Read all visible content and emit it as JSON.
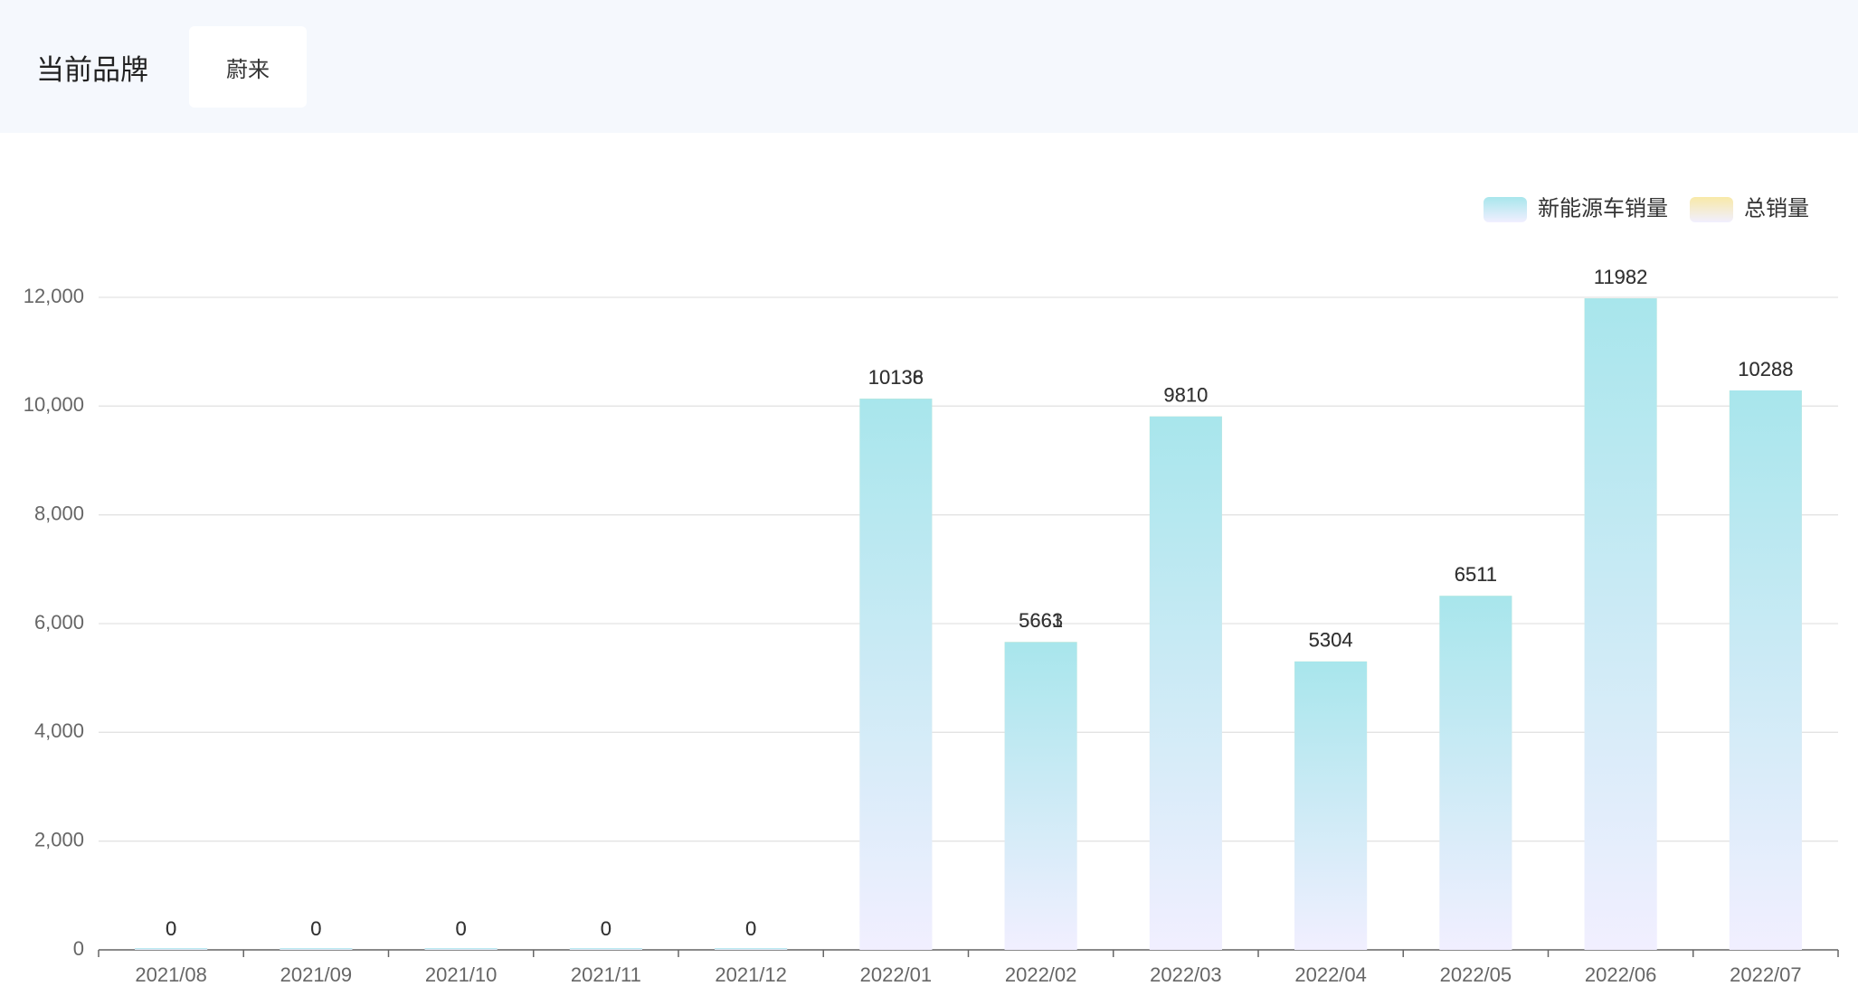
{
  "header": {
    "label": "当前品牌",
    "brand": "蔚来"
  },
  "chart_data": {
    "type": "bar",
    "categories": [
      "2021/08",
      "2021/09",
      "2021/10",
      "2021/11",
      "2021/12",
      "2022/01",
      "2022/02",
      "2022/03",
      "2022/04",
      "2022/05",
      "2022/06",
      "2022/07"
    ],
    "series": [
      {
        "name": "总销量",
        "color": "#f8e9a8",
        "values": [
          0,
          0,
          0,
          0,
          0,
          10138,
          5663,
          9810,
          5304,
          6511,
          11982,
          10288
        ]
      },
      {
        "name": "新能源车销量",
        "color": "#a8e6ec",
        "values": [
          0,
          0,
          0,
          0,
          0,
          10136,
          5661,
          9810,
          5304,
          6511,
          11982,
          10288
        ]
      }
    ],
    "legend_order": [
      1,
      0
    ],
    "legend": "top-right",
    "ylim": [
      0,
      12000
    ],
    "yticks": [
      0,
      {
        "value": 2000,
        "label": "2,000"
      },
      {
        "value": 4000,
        "label": "4,000"
      },
      {
        "value": 6000,
        "label": "6,000"
      },
      {
        "value": 8000,
        "label": "8,000"
      },
      {
        "value": 10000,
        "label": "10,000"
      },
      {
        "value": 12000,
        "label": "12,000"
      }
    ],
    "grid": true
  }
}
